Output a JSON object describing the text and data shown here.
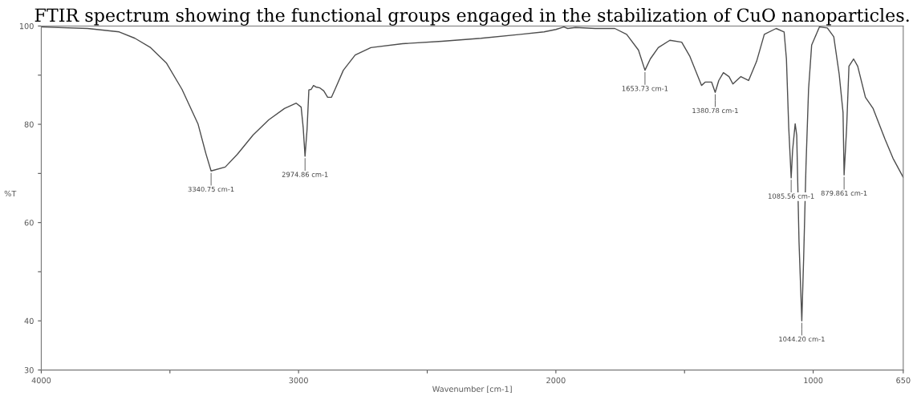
{
  "chart_data": {
    "type": "line",
    "title": "FTIR spectrum showing the functional groups engaged in the stabilization of CuO nanoparticles.",
    "xlabel": "Wavenumber [cm-1]",
    "ylabel": "%T",
    "x": [
      4000,
      3820,
      3697,
      3636,
      3575,
      3514,
      3453,
      3391,
      3360,
      3340,
      3285,
      3238,
      3177,
      3116,
      3055,
      3009,
      2990,
      2982,
      2974.86,
      2967,
      2960,
      2951,
      2942,
      2933,
      2917,
      2902,
      2887,
      2872,
      2856,
      2826,
      2780,
      2719,
      2596,
      2443,
      2291,
      2138,
      2046,
      2000,
      1969,
      1954,
      1924,
      1847,
      1771,
      1725,
      1679,
      1653.73,
      1633,
      1602,
      1557,
      1511,
      1480,
      1450,
      1434,
      1419,
      1395,
      1380.78,
      1367,
      1349,
      1327,
      1312,
      1281,
      1251,
      1220,
      1190,
      1144,
      1113,
      1104,
      1095,
      1085.56,
      1080,
      1070,
      1064,
      1055,
      1044.2,
      1037,
      1028,
      1018,
      1006,
      976,
      945,
      920,
      899,
      884,
      879.861,
      870,
      861,
      843,
      827,
      797,
      767,
      721,
      690,
      650
    ],
    "series": [
      {
        "color": "#4d4d4d",
        "values": [
          99.8,
          99.5,
          98.8,
          97.5,
          95.6,
          92.5,
          87.1,
          80.1,
          74,
          70.5,
          71.3,
          73.9,
          77.8,
          80.9,
          83.2,
          84.3,
          83.5,
          79.3,
          73.5,
          79,
          87,
          87.1,
          87.9,
          87.6,
          87.4,
          86.8,
          85.5,
          85.5,
          87.4,
          91,
          94.1,
          95.6,
          96.4,
          96.9,
          97.5,
          98.3,
          98.8,
          99.3,
          99.8,
          99.5,
          99.7,
          99.5,
          99.5,
          98.3,
          95.1,
          91,
          93.3,
          95.6,
          97.1,
          96.7,
          93.9,
          90,
          87.9,
          88.6,
          88.6,
          86.5,
          88.9,
          90.5,
          89.7,
          88.2,
          89.7,
          88.9,
          92.8,
          98.3,
          99.5,
          98.8,
          93.3,
          79.3,
          69.1,
          74.7,
          80.1,
          77.8,
          56,
          40,
          52.9,
          71.5,
          87.1,
          96.1,
          99.8,
          99.6,
          97.8,
          90.2,
          82.4,
          69.7,
          79.3,
          91.8,
          93.3,
          91.8,
          85.5,
          83.2,
          77,
          73.1,
          69.2
        ]
      }
    ],
    "xlim": [
      4000,
      650
    ],
    "xticks": [
      4000,
      {
        "value": 3500,
        "label": null
      },
      3000,
      {
        "value": 2500,
        "label": null
      },
      2000,
      {
        "value": 1500,
        "label": null
      },
      1000,
      650
    ],
    "ylim": [
      30,
      100
    ],
    "yticks": [
      30,
      40,
      {
        "value": 50,
        "label": null
      },
      60,
      {
        "value": 70,
        "label": null
      },
      80,
      {
        "value": 90,
        "label": null
      },
      100
    ],
    "grid": false,
    "legend": false,
    "annotations": [
      {
        "text": "3340.75 cm-1",
        "x": 3340,
        "y": 70.5
      },
      {
        "text": "2974.86 cm-1",
        "x": 2974.86,
        "y": 73.5
      },
      {
        "text": "1653.73 cm-1",
        "x": 1653.73,
        "y": 91
      },
      {
        "text": "1380.78 cm-1",
        "x": 1380.78,
        "y": 86.5
      },
      {
        "text": "1085.56 cm-1",
        "x": 1085.56,
        "y": 69.1
      },
      {
        "text": "1044.20 cm-1",
        "x": 1044.2,
        "y": 40
      },
      {
        "text": "879.861 cm-1",
        "x": 879.861,
        "y": 69.7
      }
    ]
  }
}
